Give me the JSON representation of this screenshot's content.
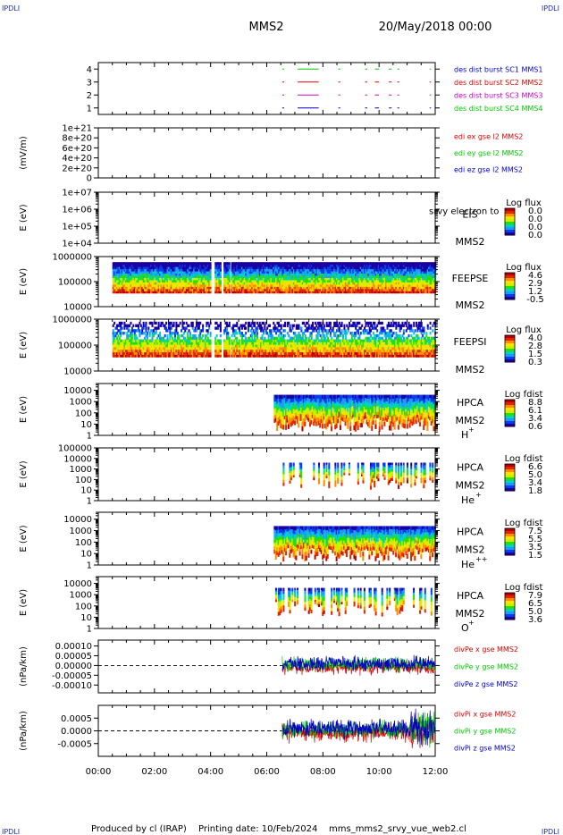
{
  "header": {
    "corner_left": "IPDLI",
    "corner_right": "IPDLI",
    "spacecraft": "MMS2",
    "datetime": "20/May/2018 00:00"
  },
  "footer": {
    "producer": "Produced by cl (IRAP)",
    "printing_date": "Printing date: 10/Feb/2024",
    "file": "mms_mms2_srvy_vue_web2.cl",
    "corner_left": "IPDLI",
    "corner_right": "IPDLI"
  },
  "colors": {
    "black": "#000000",
    "red": "#e00000",
    "green": "#00c800",
    "blue": "#0000c8",
    "magenta": "#c800c8",
    "spectrum": [
      "#1a00a0",
      "#0a3cf0",
      "#1e9bf5",
      "#00d2c8",
      "#28e000",
      "#c8f000",
      "#ffe000",
      "#ff8c00",
      "#e02800",
      "#b40000"
    ]
  },
  "chart_data": [
    {
      "type": "line",
      "panel": "burst",
      "ylabel": "",
      "yticks": [
        "1",
        "2",
        "3",
        "4"
      ],
      "ylim": [
        0.5,
        4.5
      ],
      "legend": [
        "des dist burst SC1 MMS1",
        "des dist burst SC2 MMS2",
        "des dist burst SC3 MMS3",
        "des dist burst SC4 MMS4"
      ],
      "legend_colors": [
        "#0000c8",
        "#e00000",
        "#c800c8",
        "#00c800"
      ],
      "rows": [
        {
          "y": 4,
          "color": "#00c800",
          "segments": [
            [
              6.55,
              6.62
            ],
            [
              7.1,
              7.85
            ],
            [
              8.55,
              8.62
            ],
            [
              9.5,
              9.58
            ],
            [
              9.85,
              10.0
            ],
            [
              10.35,
              10.45
            ],
            [
              10.65,
              10.72
            ],
            [
              11.8,
              11.85
            ]
          ]
        },
        {
          "y": 3,
          "color": "#e00000",
          "segments": [
            [
              6.55,
              6.62
            ],
            [
              7.1,
              7.85
            ],
            [
              8.55,
              8.62
            ],
            [
              9.5,
              9.58
            ],
            [
              9.85,
              10.0
            ],
            [
              10.35,
              10.45
            ],
            [
              10.65,
              10.72
            ],
            [
              11.8,
              11.85
            ]
          ]
        },
        {
          "y": 2,
          "color": "#c800c8",
          "segments": [
            [
              6.55,
              6.62
            ],
            [
              7.1,
              7.85
            ],
            [
              8.55,
              8.62
            ],
            [
              9.5,
              9.58
            ],
            [
              9.85,
              10.0
            ],
            [
              10.35,
              10.45
            ],
            [
              10.65,
              10.72
            ],
            [
              11.8,
              11.85
            ]
          ]
        },
        {
          "y": 1,
          "color": "#0000c8",
          "segments": [
            [
              6.55,
              6.62
            ],
            [
              7.1,
              7.85
            ],
            [
              8.55,
              8.62
            ],
            [
              9.5,
              9.58
            ],
            [
              9.85,
              10.0
            ],
            [
              10.35,
              10.45
            ],
            [
              10.65,
              10.72
            ],
            [
              11.8,
              11.85
            ]
          ]
        }
      ]
    },
    {
      "type": "line",
      "panel": "edi",
      "ylabel": "(mV/m)",
      "yticks": [
        "0",
        "2e+20",
        "4e+20",
        "6e+20",
        "8e+20",
        "1e+21"
      ],
      "ylim": [
        0,
        1e+21
      ],
      "legend": [
        "edi ex gse l2 MMS2",
        "edi ey gse l2 MMS2",
        "edi ez gse l2 MMS2"
      ],
      "legend_colors": [
        "#e00000",
        "#00c800",
        "#0000c8"
      ],
      "zero_line": true
    },
    {
      "type": "heatmap",
      "panel": "eis",
      "ylabel": "E (eV)",
      "yticks": [
        "1e+04",
        "1e+05",
        "1e+06",
        "1e+07"
      ],
      "ylim": [
        10000.0,
        10000000.0
      ],
      "yscale": "log",
      "instrument": "EIS",
      "side_text": "srvy electron to",
      "spacecraft": "MMS2",
      "colorbar_title": "Log flux",
      "colorbar_ticks": [
        "0.0",
        "0.0",
        "0.0",
        "0.0"
      ],
      "coverage": []
    },
    {
      "type": "heatmap",
      "panel": "feepse",
      "ylabel": "E (eV)",
      "yticks": [
        "10000",
        "100000",
        "1000000"
      ],
      "ylim": [
        10000.0,
        1000000.0
      ],
      "yscale": "log",
      "instrument": "FEEPSE",
      "spacecraft": "MMS2",
      "colorbar_title": "Log flux",
      "colorbar_ticks": [
        "4.6",
        "2.9",
        "1.2",
        "-0.5"
      ],
      "coverage": [
        [
          0.5,
          12.0
        ]
      ],
      "gaps": [
        [
          4.0,
          4.1
        ],
        [
          4.35,
          4.45
        ],
        [
          4.65,
          4.72
        ]
      ]
    },
    {
      "type": "heatmap",
      "panel": "feepsi",
      "ylabel": "E (eV)",
      "yticks": [
        "10000",
        "100000",
        "1000000"
      ],
      "ylim": [
        10000.0,
        1000000.0
      ],
      "yscale": "log",
      "instrument": "FEEPSI",
      "spacecraft": "MMS2",
      "colorbar_title": "Log flux",
      "colorbar_ticks": [
        "4.0",
        "2.8",
        "1.5",
        "0.3"
      ],
      "coverage": [
        [
          0.5,
          12.0
        ]
      ],
      "gaps": [
        [
          4.0,
          4.1
        ],
        [
          4.35,
          4.45
        ],
        [
          4.65,
          4.72
        ]
      ]
    },
    {
      "type": "heatmap",
      "panel": "hpca_h",
      "ylabel": "E (eV)",
      "yticks": [
        "1",
        "10",
        "100",
        "1000",
        "10000"
      ],
      "ylim": [
        1,
        40000
      ],
      "yscale": "log",
      "instrument": "HPCA",
      "spacecraft": "MMS2",
      "species": "H",
      "species_sup": "+",
      "colorbar_title": "Log fdist",
      "colorbar_ticks": [
        "8.8",
        "6.1",
        "3.4",
        "0.6"
      ],
      "coverage": [
        [
          6.25,
          12.0
        ]
      ]
    },
    {
      "type": "heatmap",
      "panel": "hpca_he1",
      "ylabel": "E (eV)",
      "yticks": [
        "1",
        "10",
        "100",
        "1000",
        "10000",
        "100000"
      ],
      "ylim": [
        1,
        100000
      ],
      "yscale": "log",
      "instrument": "HPCA",
      "spacecraft": "MMS2",
      "species": "He",
      "species_sup": "+",
      "colorbar_title": "Log fdist",
      "colorbar_ticks": [
        "6.6",
        "5.0",
        "3.4",
        "1.8"
      ],
      "coverage": [
        [
          6.3,
          12.0
        ]
      ]
    },
    {
      "type": "heatmap",
      "panel": "hpca_he2",
      "ylabel": "E (eV)",
      "yticks": [
        "1",
        "10",
        "100",
        "1000",
        "10000"
      ],
      "ylim": [
        1,
        40000
      ],
      "yscale": "log",
      "instrument": "HPCA",
      "spacecraft": "MMS2",
      "species": "He",
      "species_sup": "++",
      "colorbar_title": "Log fdist",
      "colorbar_ticks": [
        "7.5",
        "5.5",
        "3.5",
        "1.5"
      ],
      "coverage": [
        [
          6.25,
          12.0
        ]
      ]
    },
    {
      "type": "heatmap",
      "panel": "hpca_o",
      "ylabel": "E (eV)",
      "yticks": [
        "1",
        "10",
        "100",
        "1000",
        "10000"
      ],
      "ylim": [
        1,
        40000
      ],
      "yscale": "log",
      "instrument": "HPCA",
      "spacecraft": "MMS2",
      "species": "O",
      "species_sup": "+",
      "colorbar_title": "Log fdist",
      "colorbar_ticks": [
        "7.9",
        "6.5",
        "5.0",
        "3.6"
      ],
      "coverage": [
        [
          6.3,
          12.0
        ]
      ]
    },
    {
      "type": "line",
      "panel": "divpe",
      "ylabel": "(nPa/km)",
      "yticks": [
        "-0.00010",
        "-0.00005",
        "0.00000",
        "0.00005",
        "0.00010"
      ],
      "ylim": [
        -0.00014,
        0.00013
      ],
      "legend": [
        "divPe x gse MMS2",
        "divPe y gse MMS2",
        "divPe z gse MMS2"
      ],
      "legend_colors": [
        "#e00000",
        "#00c800",
        "#0000c8"
      ],
      "zero_line": true,
      "data_start": 6.55,
      "amplitude": 3e-05
    },
    {
      "type": "line",
      "panel": "divpi",
      "ylabel": "(nPa/km)",
      "yticks": [
        "-0.0005",
        "0.0000",
        "0.0005"
      ],
      "ylim": [
        -0.001,
        0.001
      ],
      "legend": [
        "divPi x gse MMS2",
        "divPi y gse MMS2",
        "divPi z gse MMS2"
      ],
      "legend_colors": [
        "#e00000",
        "#00c800",
        "#0000c8"
      ],
      "zero_line": true,
      "data_start": 6.55,
      "amplitude": 0.00028
    }
  ],
  "x_axis": {
    "ticks": [
      "00:00",
      "02:00",
      "04:00",
      "06:00",
      "08:00",
      "10:00",
      "12:00"
    ],
    "range_hours": [
      0,
      12
    ]
  }
}
